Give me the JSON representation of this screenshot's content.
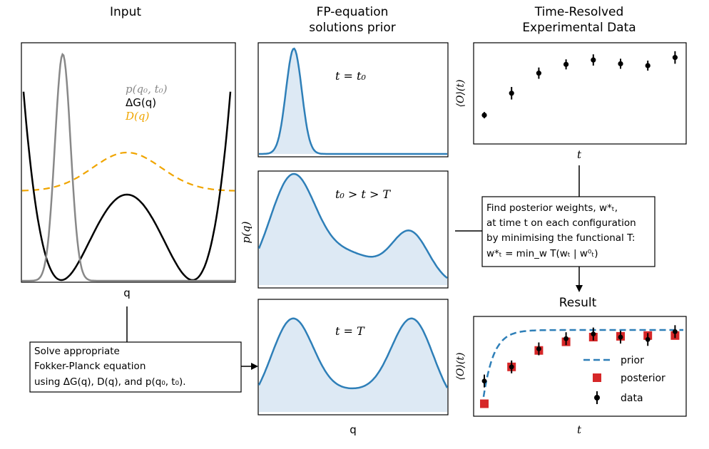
{
  "headers": {
    "input": "Input",
    "prior_line1": "FP-equation",
    "prior_line2": "solutions prior",
    "exp_line1": "Time-Resolved",
    "exp_line2": "Experimental Data"
  },
  "input_panel": {
    "xlabel": "q",
    "legend": {
      "p": "p(q₀, t₀)",
      "dG": "ΔG(q)",
      "D": "D(q)"
    },
    "colors": {
      "p": "#888888",
      "dG": "#000000",
      "D": "#f0a500"
    }
  },
  "prior_panels": {
    "ylabel": "p(q)",
    "xlabel": "q",
    "labels": [
      "t = t₀",
      "t₀ > t > T",
      "t = T"
    ],
    "color": "#2e7fb8",
    "fill": "#dde9f4"
  },
  "exp_panel": {
    "ylabel": "⟨O⟩(t)",
    "xlabel": "t",
    "data": [
      0.05,
      0.4,
      0.72,
      0.86,
      0.93,
      0.87,
      0.84,
      0.97
    ],
    "err": [
      0.05,
      0.1,
      0.09,
      0.08,
      0.09,
      0.08,
      0.08,
      0.1
    ]
  },
  "result_panel": {
    "title": "Result",
    "ylabel": "⟨O⟩(t)",
    "xlabel": "t",
    "legend": {
      "prior": "prior",
      "posterior": "posterior",
      "data": "data"
    },
    "data": [
      0.34,
      0.52,
      0.75,
      0.88,
      0.94,
      0.9,
      0.87,
      0.97
    ],
    "posterior": [
      0.05,
      0.52,
      0.73,
      0.84,
      0.9,
      0.91,
      0.92,
      0.92
    ],
    "prior_color": "#2e7fb8",
    "posterior_color": "#d62728"
  },
  "boxes": {
    "solve": [
      "Solve appropriate",
      "Fokker-Planck equation",
      "using ΔG(q), D(q), and p(q₀, t₀)."
    ],
    "find": [
      "Find posterior weights, w*ₜ,",
      "at time t on each configuration",
      "by minimising the functional T:",
      "w*ₜ = min_w T(wₜ | w⁰ₜ)"
    ]
  }
}
